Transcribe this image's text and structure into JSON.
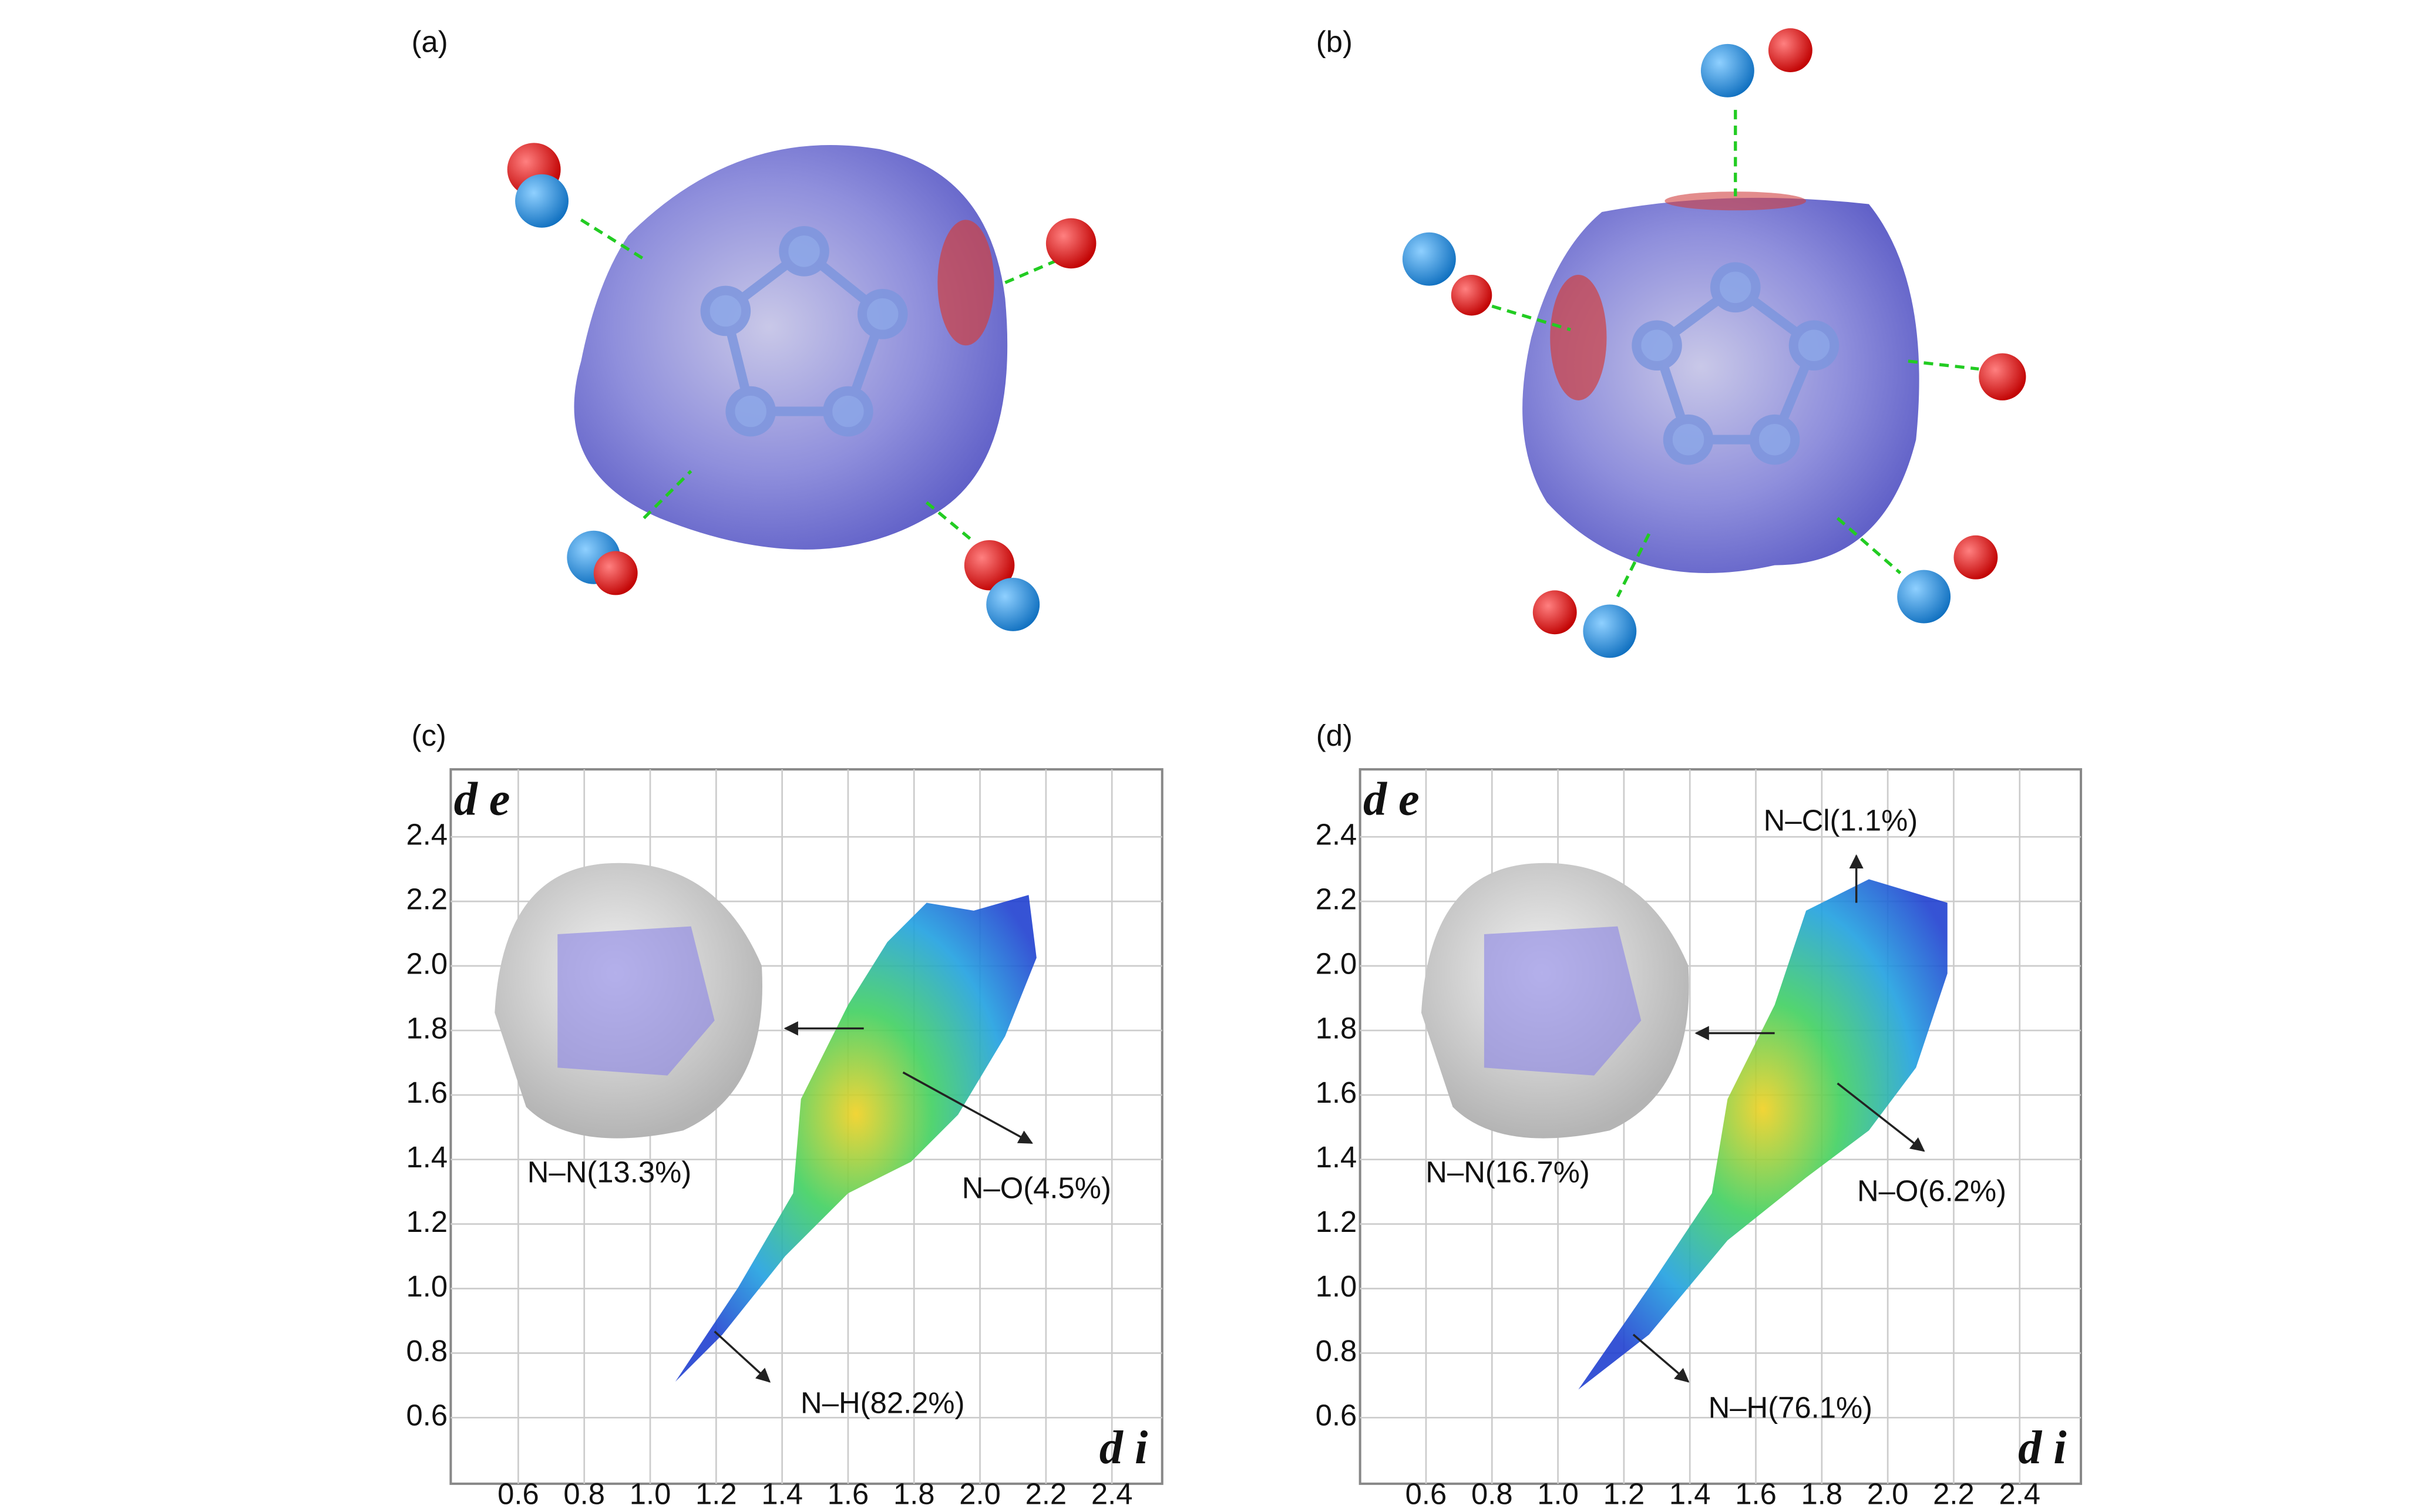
{
  "panels": [
    {
      "label": "(a)"
    },
    {
      "label": "(b)"
    },
    {
      "label": "(c)",
      "x_axis_label": "d i",
      "y_axis_label": "d e",
      "xticks": [
        "0.6",
        "0.8",
        "1.0",
        "1.2",
        "1.4",
        "1.6",
        "1.8",
        "2.0",
        "2.2",
        "2.4"
      ],
      "yticks": [
        "2.4",
        "2.2",
        "2.0",
        "1.8",
        "1.6",
        "1.4",
        "1.2",
        "1.0",
        "0.8",
        "0.6"
      ],
      "annotations": [
        "N–N(13.3%)",
        "N–O(4.5%)",
        "N–H(82.2%)"
      ]
    },
    {
      "label": "(d)",
      "x_axis_label": "d i",
      "y_axis_label": "d e",
      "xticks": [
        "0.6",
        "0.8",
        "1.0",
        "1.2",
        "1.4",
        "1.6",
        "1.8",
        "2.0",
        "2.2",
        "2.4"
      ],
      "yticks": [
        "2.4",
        "2.2",
        "2.0",
        "1.8",
        "1.6",
        "1.4",
        "1.2",
        "1.0",
        "0.8",
        "0.6"
      ],
      "annotations": [
        "N–Cl(1.1%)",
        "N–N(16.7%)",
        "N–O(6.2%)",
        "N–H(76.1%)"
      ]
    }
  ]
}
